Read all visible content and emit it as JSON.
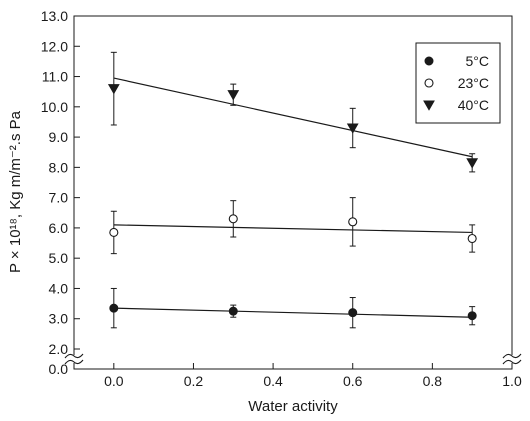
{
  "chart_data": {
    "type": "scatter",
    "xlabel": "Water activity",
    "ylabel": "P × 10¹⁸, Kg m/m⁻².s Pa",
    "xlim": [
      -0.1,
      1.0
    ],
    "ylim": [
      0.0,
      13.0
    ],
    "xticks": [
      0.0,
      0.2,
      0.4,
      0.6,
      0.8,
      1.0
    ],
    "xtick_labels": [
      "0.0",
      "0.2",
      "0.4",
      "0.6",
      "0.8",
      "1.0"
    ],
    "yticks": [
      0.0,
      2.0,
      3.0,
      4.0,
      5.0,
      6.0,
      7.0,
      8.0,
      9.0,
      10.0,
      11.0,
      12.0,
      13.0
    ],
    "ytick_labels": [
      "0.0",
      "2.0",
      "3.0",
      "4.0",
      "5.0",
      "6.0",
      "7.0",
      "8.0",
      "9.0",
      "10.0",
      "11.0",
      "12.0",
      "13.0"
    ],
    "axis_break": "between 0.0 and 2.0 on y",
    "grid": false,
    "legend_position": "top-right",
    "series": [
      {
        "name": "5°C",
        "marker": "filled-circle",
        "x": [
          0.0,
          0.3,
          0.6,
          0.9
        ],
        "y": [
          3.35,
          3.25,
          3.2,
          3.1
        ],
        "err": [
          0.65,
          0.2,
          0.5,
          0.3
        ],
        "fit": [
          [
            0.0,
            3.35
          ],
          [
            0.9,
            3.05
          ]
        ]
      },
      {
        "name": "23°C",
        "marker": "open-circle",
        "x": [
          0.0,
          0.3,
          0.6,
          0.9
        ],
        "y": [
          5.85,
          6.3,
          6.2,
          5.65
        ],
        "err": [
          0.7,
          0.6,
          0.8,
          0.45
        ],
        "fit": [
          [
            0.0,
            6.1
          ],
          [
            0.9,
            5.85
          ]
        ]
      },
      {
        "name": "40°C",
        "marker": "filled-triangle-down",
        "x": [
          0.0,
          0.3,
          0.6,
          0.9
        ],
        "y": [
          10.6,
          10.4,
          9.3,
          8.15
        ],
        "err": [
          1.2,
          0.35,
          0.65,
          0.3
        ],
        "fit": [
          [
            0.0,
            10.95
          ],
          [
            0.9,
            8.35
          ]
        ]
      }
    ]
  }
}
